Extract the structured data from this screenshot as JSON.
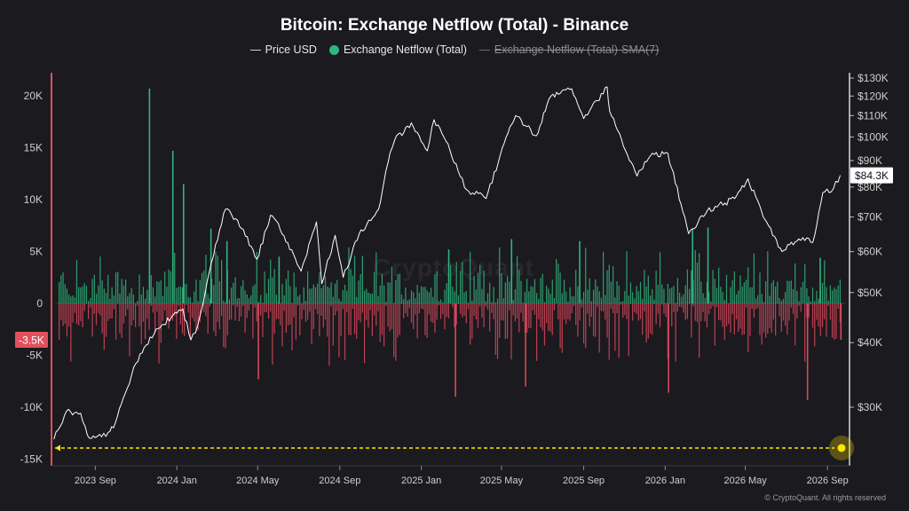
{
  "title": "Bitcoin: Exchange Netflow (Total) - Binance",
  "legend": {
    "price": "Price USD",
    "netflow": "Exchange Netflow (Total)",
    "sma": "Exchange Netflow (Total)-SMA(7)"
  },
  "watermark": "CryptoQuant",
  "copyright": "© CryptoQuant. All rights reserved",
  "colors": {
    "background": "#1b1a1f",
    "positive": "#2fb57d",
    "negative": "#d9485a",
    "price_line": "#ffffff",
    "marker": "#ffe600"
  },
  "chart_data": {
    "type": "bar",
    "x_ticks": [
      "2023 Sep",
      "2024 Jan",
      "2024 May",
      "2024 Sep",
      "2025 Jan",
      "2025 May",
      "2025 Sep",
      "2026 Jan",
      "2026 May",
      "2026 Sep"
    ],
    "left_axis": {
      "label": "Exchange Netflow (Total)",
      "ticks": [
        "20K",
        "15K",
        "10K",
        "5K",
        "0",
        "-5K",
        "-10K",
        "-15K"
      ],
      "ylim": [
        -15000,
        20000
      ]
    },
    "right_axis": {
      "label": "Price USD",
      "scale": "log",
      "ticks": [
        "$130K",
        "$120K",
        "$110K",
        "$100K",
        "$90K",
        "$80K",
        "$70K",
        "$60K",
        "$50K",
        "$40K",
        "$30K"
      ]
    },
    "current_price_label": "$84.3K",
    "current_netflow_label": "-3.5K",
    "price_series": {
      "name": "Price USD",
      "points": [
        [
          "2023-07",
          26000
        ],
        [
          "2023-07-20",
          29500
        ],
        [
          "2023-08-10",
          29200
        ],
        [
          "2023-08-20",
          26500
        ],
        [
          "2023-09",
          26200
        ],
        [
          "2023-09-20",
          26800
        ],
        [
          "2023-10",
          28000
        ],
        [
          "2023-10-25",
          34500
        ],
        [
          "2023-11",
          36500
        ],
        [
          "2023-12",
          42500
        ],
        [
          "2024-01-10",
          46500
        ],
        [
          "2024-01-22",
          40500
        ],
        [
          "2024-02",
          43000
        ],
        [
          "2024-02-28",
          62000
        ],
        [
          "2024-03-14",
          72500
        ],
        [
          "2024-04",
          69000
        ],
        [
          "2024-04-30",
          58000
        ],
        [
          "2024-05-20",
          70500
        ],
        [
          "2024-06",
          68000
        ],
        [
          "2024-07-05",
          55000
        ],
        [
          "2024-07-28",
          68500
        ],
        [
          "2024-08-05",
          52000
        ],
        [
          "2024-08-25",
          64500
        ],
        [
          "2024-09-06",
          53500
        ],
        [
          "2024-09-30",
          65000
        ],
        [
          "2024-10-29",
          72500
        ],
        [
          "2024-11-12",
          89000
        ],
        [
          "2024-11-22",
          98500
        ],
        [
          "2024-12-17",
          106500
        ],
        [
          "2025-01-10",
          94000
        ],
        [
          "2025-01-20",
          108000
        ],
        [
          "2025-02-10",
          97000
        ],
        [
          "2025-02-28",
          84000
        ],
        [
          "2025-03-10",
          79000
        ],
        [
          "2025-04-08",
          76000
        ],
        [
          "2025-05-08",
          100000
        ],
        [
          "2025-05-22",
          110000
        ],
        [
          "2025-06-22",
          100500
        ],
        [
          "2025-07-14",
          120000
        ],
        [
          "2025-08-14",
          124000
        ],
        [
          "2025-09-01",
          108500
        ],
        [
          "2025-10-06",
          125000
        ],
        [
          "2025-10-10",
          112000
        ],
        [
          "2025-11-20",
          84000
        ],
        [
          "2025-12-10",
          92000
        ],
        [
          "2026-01-05",
          93000
        ],
        [
          "2026-02-05",
          65000
        ],
        [
          "2026-03-05",
          72000
        ],
        [
          "2026-04-15",
          76000
        ],
        [
          "2026-05-05",
          83000
        ],
        [
          "2026-05-25",
          72000
        ],
        [
          "2026-06-25",
          60000
        ],
        [
          "2026-07-20",
          63500
        ],
        [
          "2026-08-10",
          62500
        ],
        [
          "2026-08-25",
          78000
        ],
        [
          "2026-09-10",
          79500
        ],
        [
          "2026-09-20",
          84300
        ]
      ]
    },
    "netflow_series": {
      "name": "Exchange Netflow (Total)",
      "spikes": [
        [
          "2023-11-20",
          20700
        ],
        [
          "2023-12-25",
          14700
        ],
        [
          "2024-01-10",
          11500
        ],
        [
          "2024-02-20",
          7200
        ],
        [
          "2024-03-15",
          6000
        ],
        [
          "2024-06-01",
          4500
        ],
        [
          "2025-02-10",
          5200
        ],
        [
          "2025-05-15",
          6200
        ],
        [
          "2025-08-25",
          6000
        ],
        [
          "2026-02-10",
          7200
        ],
        [
          "2026-03-05",
          7300
        ],
        [
          "2026-08-20",
          4400
        ],
        [
          "2024-05-01",
          -7300
        ],
        [
          "2025-02-20",
          -9000
        ],
        [
          "2025-06-05",
          -8000
        ],
        [
          "2026-01-05",
          -8600
        ],
        [
          "2026-08-01",
          -9300
        ],
        [
          "2026-09-20",
          -3500
        ]
      ]
    },
    "sma_series": {
      "name": "Exchange Netflow (Total)-SMA(7)",
      "visible": false
    }
  }
}
